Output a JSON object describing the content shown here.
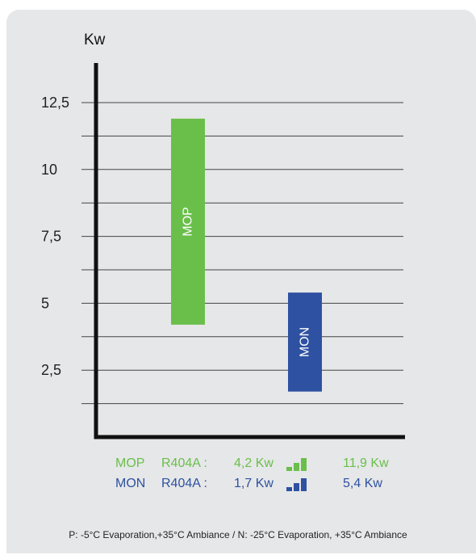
{
  "colors": {
    "mop": "#6abf4b",
    "mon": "#2e51a2",
    "axis": "#111111",
    "grid": "#444444",
    "card": "#e6e7e8"
  },
  "chart_data": {
    "type": "bar",
    "title": "",
    "xlabel": "",
    "ylabel": "Kw",
    "ylim": [
      0,
      14
    ],
    "yticks": [
      "2,5",
      "5",
      "7,5",
      "10",
      "12,5"
    ],
    "ytick_values": [
      2.5,
      5,
      7.5,
      10,
      12.5
    ],
    "grid_values": [
      1.25,
      2.5,
      3.75,
      5,
      6.25,
      7.5,
      8.75,
      10,
      11.25,
      12.5
    ],
    "grid": true,
    "categories": [
      "MOP",
      "MON"
    ],
    "series": [
      {
        "name": "MOP",
        "low": 4.2,
        "high": 11.9,
        "color": "#6abf4b"
      },
      {
        "name": "MON",
        "low": 1.7,
        "high": 5.4,
        "color": "#2e51a2"
      }
    ]
  },
  "legend": [
    {
      "name": "MOP",
      "refrigerant": "R404A :",
      "min": "4,2 Kw",
      "max": "11,9 Kw",
      "color": "#6abf4b"
    },
    {
      "name": "MON",
      "refrigerant": "R404A :",
      "min": "1,7 Kw",
      "max": "5,4 Kw",
      "color": "#2e51a2"
    }
  ],
  "footnote": "P: -5°C Evaporation,+35°C Ambiance / N: -25°C Evaporation, +35°C Ambiance"
}
